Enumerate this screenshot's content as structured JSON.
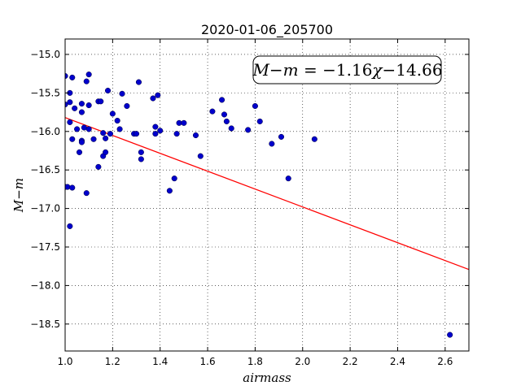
{
  "chart_data": {
    "type": "scatter",
    "title": "2020-01-06_205700",
    "xlabel": "airmass",
    "ylabel": "M−m",
    "xlim": [
      1.0,
      2.7
    ],
    "ylim": [
      -18.85,
      -14.8
    ],
    "y_inverted": true,
    "grid": true,
    "x_ticks": [
      1.0,
      1.2,
      1.4,
      1.6,
      1.8,
      2.0,
      2.2,
      2.4,
      2.6
    ],
    "x_tick_labels": [
      "1.0",
      "1.2",
      "1.4",
      "1.6",
      "1.8",
      "2.0",
      "2.2",
      "2.4",
      "2.6"
    ],
    "y_ticks": [
      -15.0,
      -15.5,
      -16.0,
      -16.5,
      -17.0,
      -17.5,
      -18.0,
      -18.5
    ],
    "y_tick_labels": [
      "−15.0",
      "−15.5",
      "−16.0",
      "−16.5",
      "−17.0",
      "−17.5",
      "−18.0",
      "−18.5"
    ],
    "fit_label": "M−m = −1.16χ−14.66",
    "fit_label_parts": {
      "lhs": "M−m",
      "eq": " = ",
      "coef": "−1.16",
      "var": "χ",
      "const": "−14.66"
    },
    "fit": {
      "slope": -1.16,
      "intercept": -14.66,
      "x_range": [
        1.0,
        2.7
      ],
      "color": "#ff0000"
    },
    "point_color": "#0000cc",
    "points": [
      [
        1.0,
        -15.28
      ],
      [
        1.0,
        -15.65
      ],
      [
        1.0,
        -16.72
      ],
      [
        1.01,
        -16.72
      ],
      [
        1.02,
        -17.23
      ],
      [
        1.02,
        -15.62
      ],
      [
        1.02,
        -15.5
      ],
      [
        1.02,
        -15.88
      ],
      [
        1.03,
        -15.3
      ],
      [
        1.03,
        -16.1
      ],
      [
        1.03,
        -16.73
      ],
      [
        1.04,
        -15.7
      ],
      [
        1.05,
        -15.97
      ],
      [
        1.06,
        -16.27
      ],
      [
        1.07,
        -16.12
      ],
      [
        1.07,
        -16.14
      ],
      [
        1.07,
        -15.64
      ],
      [
        1.07,
        -15.75
      ],
      [
        1.08,
        -15.95
      ],
      [
        1.09,
        -15.35
      ],
      [
        1.09,
        -16.8
      ],
      [
        1.1,
        -15.26
      ],
      [
        1.1,
        -15.66
      ],
      [
        1.1,
        -15.97
      ],
      [
        1.12,
        -16.1
      ],
      [
        1.14,
        -16.46
      ],
      [
        1.14,
        -15.61
      ],
      [
        1.15,
        -15.61
      ],
      [
        1.16,
        -16.32
      ],
      [
        1.16,
        -16.02
      ],
      [
        1.17,
        -16.27
      ],
      [
        1.17,
        -16.09
      ],
      [
        1.18,
        -15.47
      ],
      [
        1.19,
        -16.03
      ],
      [
        1.2,
        -15.77
      ],
      [
        1.22,
        -15.86
      ],
      [
        1.23,
        -15.97
      ],
      [
        1.24,
        -15.51
      ],
      [
        1.26,
        -15.67
      ],
      [
        1.29,
        -16.03
      ],
      [
        1.3,
        -16.03
      ],
      [
        1.31,
        -15.36
      ],
      [
        1.32,
        -16.27
      ],
      [
        1.32,
        -16.36
      ],
      [
        1.37,
        -15.57
      ],
      [
        1.38,
        -15.94
      ],
      [
        1.38,
        -16.03
      ],
      [
        1.39,
        -15.53
      ],
      [
        1.4,
        -15.99
      ],
      [
        1.44,
        -16.77
      ],
      [
        1.46,
        -16.61
      ],
      [
        1.47,
        -16.03
      ],
      [
        1.48,
        -15.89
      ],
      [
        1.5,
        -15.89
      ],
      [
        1.55,
        -16.05
      ],
      [
        1.57,
        -16.32
      ],
      [
        1.62,
        -15.74
      ],
      [
        1.66,
        -15.59
      ],
      [
        1.67,
        -15.78
      ],
      [
        1.68,
        -15.87
      ],
      [
        1.7,
        -15.96
      ],
      [
        1.77,
        -15.98
      ],
      [
        1.8,
        -15.67
      ],
      [
        1.82,
        -15.87
      ],
      [
        1.87,
        -16.16
      ],
      [
        1.91,
        -16.07
      ],
      [
        1.94,
        -16.61
      ],
      [
        2.05,
        -16.1
      ],
      [
        2.62,
        -18.64
      ]
    ]
  }
}
